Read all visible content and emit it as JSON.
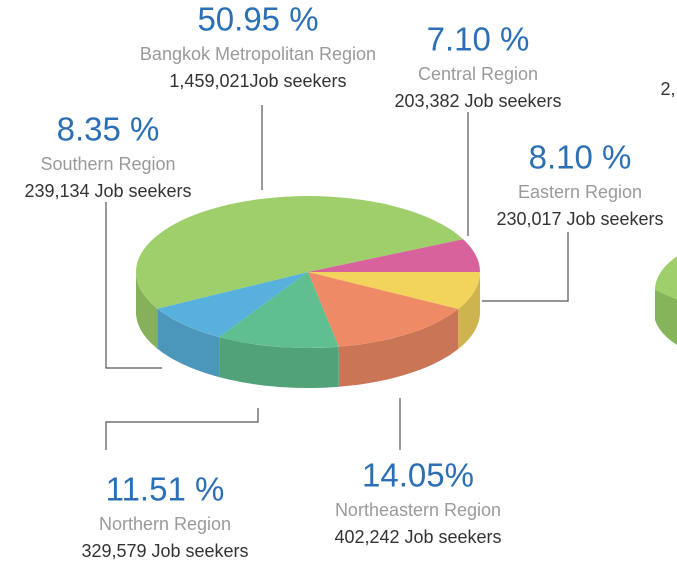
{
  "chart_data": {
    "type": "pie",
    "categories": [
      "Eastern Region",
      "Northeastern Region",
      "Northern Region",
      "Southern Region",
      "Bangkok Metropolitan Region",
      "Central Region"
    ],
    "values": [
      8.1,
      14.05,
      11.51,
      8.35,
      50.95,
      7.1
    ],
    "value_labels": [
      "8.10 %",
      "14.05%",
      "11.51 %",
      "8.35 %",
      "50.95 %",
      "7.10 %"
    ],
    "details": [
      "230,017 Job seekers",
      "402,242 Job seekers",
      "329,579 Job seekers",
      "239,134 Job seekers",
      "1,459,021Job seekers",
      "203,382 Job seekers"
    ],
    "colors": [
      "#f2d45c",
      "#ef8a66",
      "#5fbf8e",
      "#58b1dc",
      "#9fcf6b",
      "#d7629c"
    ],
    "annotations": [
      "2,"
    ]
  }
}
